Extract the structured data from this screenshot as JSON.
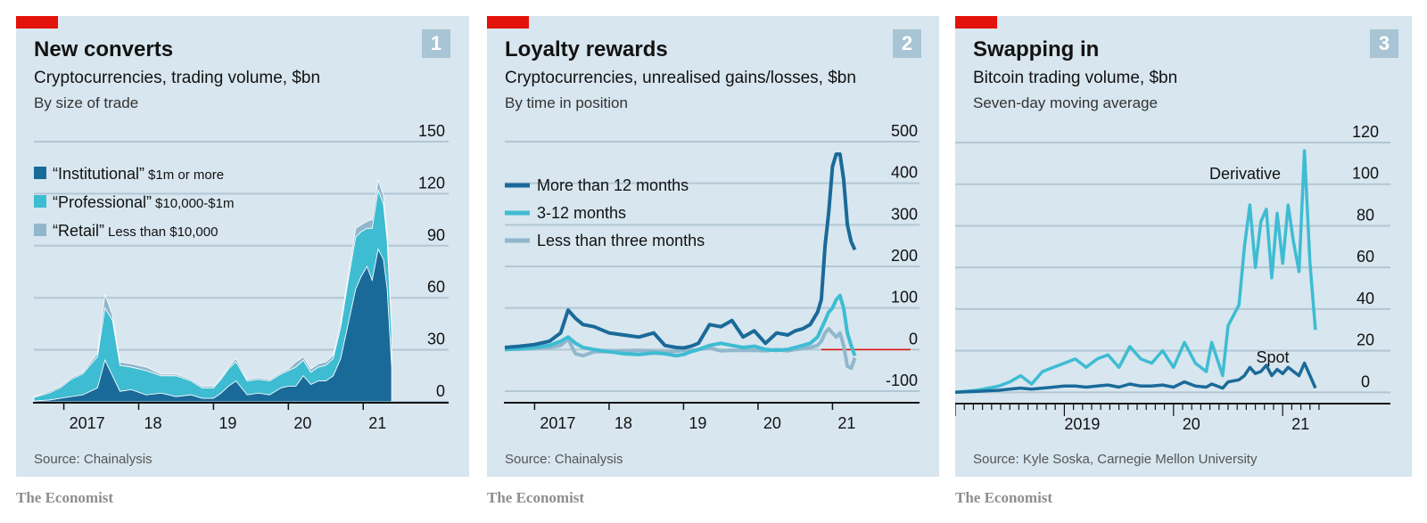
{
  "brand": "The Economist",
  "colors": {
    "background": "#d7e6ef",
    "institutional": "#1a6a99",
    "professional": "#3ebcd2",
    "retail": "#90b7cc",
    "derivative": "#3ebcd2",
    "spot": "#1a6a99",
    "grid": "#b2c7d3",
    "zero_line": "#e3120b",
    "accent": "#e3120b"
  },
  "panels": [
    {
      "number": "1",
      "title": "New converts",
      "subtitle": "Cryptocurrencies, trading volume, $bn",
      "note": "By size of trade",
      "source": "Source: Chainalysis"
    },
    {
      "number": "2",
      "title": "Loyalty rewards",
      "subtitle": "Cryptocurrencies, unrealised gains/losses, $bn",
      "note": "By time in position",
      "source": "Source: Chainalysis"
    },
    {
      "number": "3",
      "title": "Swapping in",
      "subtitle": "Bitcoin trading volume, $bn",
      "note": "Seven-day moving average",
      "source": "Source: Kyle Soska, Carnegie Mellon University"
    }
  ],
  "chart_data": [
    {
      "type": "area",
      "stacked": true,
      "title": "New converts",
      "ylim": [
        0,
        150
      ],
      "yticks": [
        0,
        30,
        60,
        90,
        120,
        150
      ],
      "xlim": [
        2016.6,
        2021.45
      ],
      "xticks": [
        {
          "label": "2017",
          "at": 2017
        },
        {
          "label": "18",
          "at": 2018
        },
        {
          "label": "19",
          "at": 2019
        },
        {
          "label": "20",
          "at": 2020
        },
        {
          "label": "21",
          "at": 2021
        }
      ],
      "x": [
        2016.6,
        2016.8,
        2016.95,
        2017.1,
        2017.25,
        2017.45,
        2017.55,
        2017.65,
        2017.75,
        2017.9,
        2018.1,
        2018.3,
        2018.5,
        2018.7,
        2018.85,
        2019.0,
        2019.1,
        2019.2,
        2019.3,
        2019.45,
        2019.6,
        2019.75,
        2019.9,
        2020.0,
        2020.1,
        2020.2,
        2020.3,
        2020.4,
        2020.5,
        2020.6,
        2020.7,
        2020.8,
        2020.9,
        2020.97,
        2021.05,
        2021.12,
        2021.2,
        2021.27,
        2021.32,
        2021.38
      ],
      "legend": [
        {
          "label": "“Institutional”",
          "detail": "$1m or more"
        },
        {
          "label": "“Professional”",
          "detail": "$10,000-$1m"
        },
        {
          "label": "“Retail”",
          "detail": "Less than $10,000"
        }
      ],
      "series": [
        {
          "name": "Institutional",
          "values": [
            0.5,
            1,
            2,
            3,
            4,
            8,
            24,
            15,
            6,
            7,
            4,
            5,
            3,
            4,
            2,
            2,
            5,
            9,
            12,
            4,
            5,
            4,
            8,
            9,
            9,
            15,
            10,
            12,
            12,
            15,
            25,
            45,
            65,
            72,
            78,
            70,
            88,
            82,
            65,
            20
          ]
        },
        {
          "name": "Professional",
          "values": [
            2,
            4,
            6,
            10,
            12,
            18,
            30,
            32,
            15,
            13,
            14,
            10,
            12,
            8,
            6,
            6,
            8,
            10,
            11,
            8,
            8,
            8,
            8,
            9,
            11,
            9,
            7,
            8,
            9,
            10,
            18,
            25,
            30,
            26,
            22,
            30,
            34,
            32,
            28,
            20
          ]
        },
        {
          "name": "Retail",
          "values": [
            0.5,
            1,
            1,
            1,
            1,
            2,
            8,
            3,
            2,
            2,
            2,
            1,
            1,
            1,
            1,
            1,
            1,
            1,
            2,
            1,
            1,
            1,
            1,
            1,
            3,
            2,
            2,
            2,
            2,
            2,
            3,
            3,
            5,
            4,
            4,
            5,
            6,
            5,
            4,
            3
          ]
        }
      ]
    },
    {
      "type": "line",
      "title": "Loyalty rewards",
      "ylim": [
        -100,
        500
      ],
      "yticks": [
        -100,
        0,
        100,
        200,
        300,
        400,
        500
      ],
      "xlim": [
        2016.6,
        2021.45
      ],
      "xticks": [
        {
          "label": "2017",
          "at": 2017
        },
        {
          "label": "18",
          "at": 2018
        },
        {
          "label": "19",
          "at": 2019
        },
        {
          "label": "20",
          "at": 2020
        },
        {
          "label": "21",
          "at": 2021
        }
      ],
      "x": [
        2016.6,
        2016.8,
        2017.0,
        2017.2,
        2017.35,
        2017.45,
        2017.55,
        2017.65,
        2017.8,
        2018.0,
        2018.2,
        2018.4,
        2018.6,
        2018.75,
        2018.9,
        2019.0,
        2019.1,
        2019.2,
        2019.35,
        2019.5,
        2019.65,
        2019.8,
        2019.95,
        2020.1,
        2020.25,
        2020.4,
        2020.5,
        2020.6,
        2020.7,
        2020.8,
        2020.85,
        2020.9,
        2020.95,
        2021.0,
        2021.05,
        2021.1,
        2021.15,
        2021.2,
        2021.25,
        2021.3
      ],
      "legend": [
        "More than 12 months",
        "3-12 months",
        "Less than three months"
      ],
      "series": [
        {
          "name": "More than 12 months",
          "values": [
            5,
            8,
            12,
            20,
            40,
            95,
            75,
            60,
            55,
            40,
            35,
            30,
            40,
            10,
            5,
            4,
            8,
            15,
            60,
            55,
            70,
            30,
            45,
            15,
            40,
            35,
            45,
            50,
            60,
            90,
            120,
            250,
            330,
            440,
            470,
            470,
            410,
            300,
            260,
            240
          ]
        },
        {
          "name": "3-12 months",
          "values": [
            0,
            2,
            5,
            10,
            20,
            30,
            15,
            5,
            0,
            -5,
            -10,
            -12,
            -8,
            -10,
            -15,
            -12,
            -5,
            0,
            10,
            15,
            10,
            5,
            8,
            0,
            -2,
            0,
            5,
            10,
            15,
            30,
            50,
            70,
            90,
            100,
            120,
            130,
            100,
            40,
            10,
            -15
          ]
        },
        {
          "name": "Less than three months",
          "values": [
            0,
            1,
            2,
            5,
            10,
            25,
            -10,
            -15,
            -5,
            -5,
            -3,
            -2,
            -4,
            -6,
            -4,
            -2,
            -2,
            0,
            4,
            -3,
            -2,
            -2,
            -2,
            -3,
            0,
            -3,
            0,
            2,
            5,
            10,
            20,
            40,
            50,
            40,
            30,
            40,
            10,
            -40,
            -45,
            -20
          ]
        }
      ],
      "reference_line": 0
    },
    {
      "type": "line",
      "title": "Swapping in",
      "ylim": [
        -5,
        120
      ],
      "yticks": [
        0,
        20,
        40,
        60,
        80,
        100,
        120
      ],
      "xlim": [
        2018.0,
        2021.35
      ],
      "xticks": [
        {
          "label": "2019",
          "at": 2019
        },
        {
          "label": "20",
          "at": 2020
        },
        {
          "label": "21",
          "at": 2021
        }
      ],
      "x": [
        2018.0,
        2018.2,
        2018.4,
        2018.5,
        2018.6,
        2018.7,
        2018.8,
        2018.9,
        2019.0,
        2019.1,
        2019.2,
        2019.3,
        2019.4,
        2019.5,
        2019.6,
        2019.7,
        2019.8,
        2019.9,
        2020.0,
        2020.1,
        2020.2,
        2020.3,
        2020.35,
        2020.45,
        2020.5,
        2020.6,
        2020.65,
        2020.7,
        2020.75,
        2020.8,
        2020.85,
        2020.9,
        2020.95,
        2021.0,
        2021.05,
        2021.1,
        2021.15,
        2021.2,
        2021.25,
        2021.3
      ],
      "labels": [
        "Derivative",
        "Spot"
      ],
      "series": [
        {
          "name": "Derivative",
          "values": [
            0,
            1,
            3,
            5,
            8,
            4,
            10,
            12,
            14,
            16,
            12,
            16,
            18,
            12,
            22,
            16,
            14,
            20,
            12,
            24,
            14,
            10,
            24,
            8,
            32,
            42,
            70,
            90,
            60,
            82,
            88,
            55,
            86,
            62,
            90,
            72,
            58,
            116,
            62,
            30
          ]
        },
        {
          "name": "Spot",
          "values": [
            0,
            0.5,
            1,
            1.5,
            2,
            1.5,
            2,
            2.5,
            3,
            3,
            2.5,
            3,
            3.5,
            2.5,
            4,
            3,
            3,
            3.5,
            2.5,
            5,
            3,
            2.5,
            4,
            2,
            5,
            6,
            8,
            12,
            9,
            10,
            13,
            8,
            11,
            9,
            12,
            10,
            8,
            14,
            8,
            2
          ]
        }
      ]
    }
  ]
}
